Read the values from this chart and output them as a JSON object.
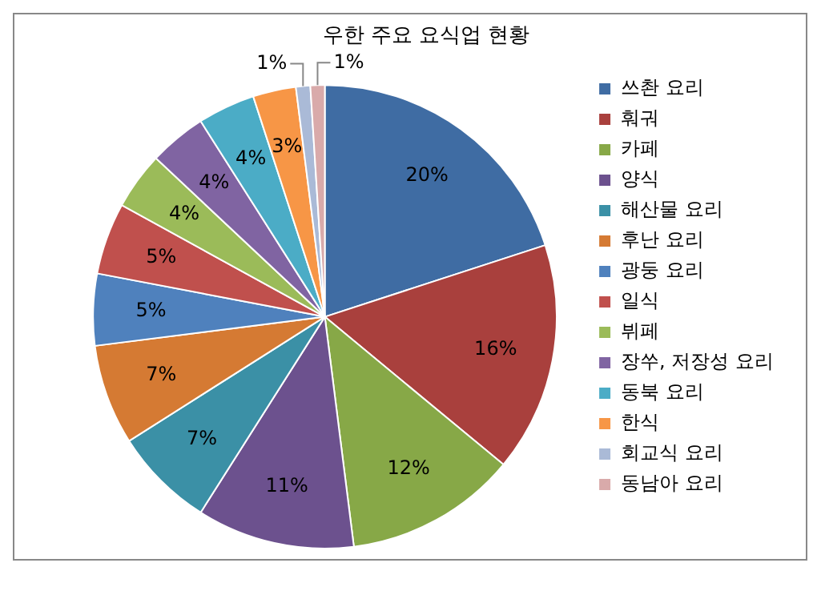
{
  "chart_data": {
    "type": "pie",
    "title": "우한 주요 요식업 현황",
    "categories": [
      "쓰촨 요리",
      "훠궈",
      "카페",
      "양식",
      "해산물 요리",
      "후난 요리",
      "광둥 요리",
      "일식",
      "뷔페",
      "장쑤, 저장성 요리",
      "동북 요리",
      "한식",
      "회교식 요리",
      "동남아 요리"
    ],
    "values": [
      20,
      16,
      12,
      11,
      7,
      7,
      5,
      5,
      4,
      4,
      4,
      3,
      1,
      1
    ],
    "value_labels": [
      "20%",
      "16%",
      "12%",
      "11%",
      "7%",
      "7%",
      "5%",
      "5%",
      "4%",
      "4%",
      "4%",
      "3%",
      "1%",
      "1%"
    ],
    "colors": [
      "#3f6ca3",
      "#a9403d",
      "#87a847",
      "#6c518e",
      "#3b90a6",
      "#d57a33",
      "#4f81bd",
      "#c0504d",
      "#9bbb59",
      "#8064a2",
      "#4bacc6",
      "#f79646",
      "#aabad7",
      "#d9aaaa"
    ],
    "legend": "right"
  }
}
